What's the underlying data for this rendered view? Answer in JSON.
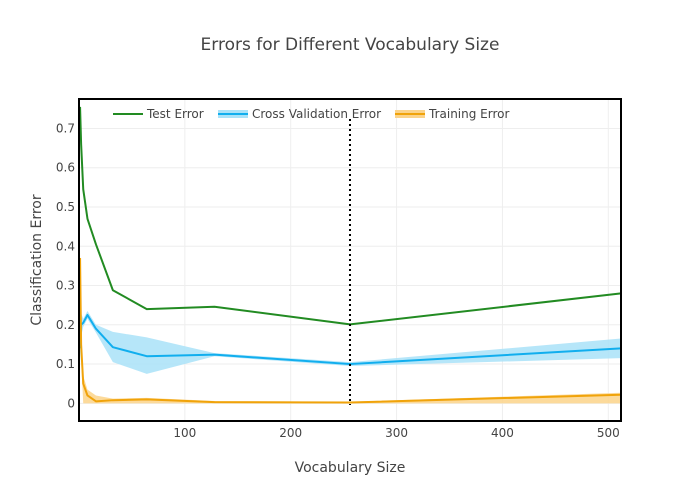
{
  "chart_data": {
    "type": "line",
    "title": "Errors for Different Vocabulary Size",
    "xlabel": "Vocabulary Size",
    "ylabel": "Classification Error",
    "xlim": [
      0,
      512
    ],
    "ylim": [
      -0.045,
      0.775
    ],
    "xticks": [
      100,
      200,
      300,
      400,
      500
    ],
    "yticks": [
      0,
      0.1,
      0.2,
      0.3,
      0.4,
      0.5,
      0.6,
      0.7
    ],
    "grid": true,
    "legend_position": "top-left inside",
    "vline": {
      "x": 256,
      "style": "dotted",
      "color": "#000000"
    },
    "series": [
      {
        "name": "Test Error",
        "color": "#228B22",
        "x": [
          1,
          2,
          4,
          8,
          16,
          32,
          64,
          128,
          256,
          512
        ],
        "y": [
          0.755,
          0.66,
          0.545,
          0.47,
          0.405,
          0.288,
          0.24,
          0.246,
          0.201,
          0.28
        ]
      },
      {
        "name": "Cross Validation Error",
        "color": "#11AEEE",
        "band_color": "#A9E2F8",
        "x": [
          1,
          2,
          4,
          8,
          16,
          32,
          64,
          128,
          256,
          512
        ],
        "y": [
          0.14,
          0.2,
          0.205,
          0.225,
          0.19,
          0.143,
          0.12,
          0.124,
          0.1,
          0.14
        ],
        "lower": [
          0.1,
          0.17,
          0.195,
          0.215,
          0.18,
          0.105,
          0.075,
          0.12,
          0.095,
          0.115
        ],
        "upper": [
          0.18,
          0.23,
          0.215,
          0.235,
          0.2,
          0.182,
          0.168,
          0.128,
          0.105,
          0.165
        ]
      },
      {
        "name": "Training Error",
        "color": "#F0A30A",
        "band_color": "#FBD38A",
        "x": [
          1,
          2,
          4,
          8,
          16,
          32,
          64,
          128,
          256,
          512
        ],
        "y": [
          0.37,
          0.15,
          0.05,
          0.02,
          0.005,
          0.008,
          0.01,
          0.003,
          0.002,
          0.022
        ],
        "lower": [
          0.35,
          0.11,
          0.0,
          0.0,
          0.0,
          0.0,
          0.0,
          0.0,
          0.0,
          0.0
        ],
        "upper": [
          0.39,
          0.19,
          0.07,
          0.035,
          0.02,
          0.012,
          0.014,
          0.006,
          0.004,
          0.027
        ]
      }
    ]
  }
}
